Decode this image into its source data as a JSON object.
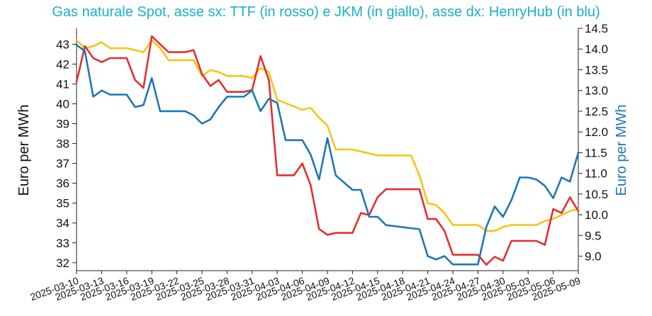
{
  "chart_data": {
    "type": "line",
    "title": "Gas naturale Spot, asse sx: TTF (in rosso) e JKM (in giallo), asse dx: HenryHub (in blu)",
    "ylabel": "Euro per MWh",
    "y2label": "Euro per MWh",
    "ylim": [
      31.6,
      43.8
    ],
    "y2lim": [
      8.65,
      14.5
    ],
    "yticks": [
      "32",
      "33",
      "34",
      "35",
      "36",
      "37",
      "38",
      "39",
      "40",
      "41",
      "42",
      "43"
    ],
    "y2ticks": [
      "9.0",
      "9.5",
      "10.0",
      "10.5",
      "11.0",
      "11.5",
      "12.0",
      "12.5",
      "13.0",
      "13.5",
      "14.0",
      "14.5"
    ],
    "xlim": [
      "2025-03-10",
      "2025-05-09"
    ],
    "xticks": [
      "2025-03-10",
      "2025-03-13",
      "2025-03-16",
      "2025-03-19",
      "2025-03-22",
      "2025-03-25",
      "2025-03-28",
      "2025-03-31",
      "2025-04-03",
      "2025-04-06",
      "2025-04-09",
      "2025-04-12",
      "2025-04-15",
      "2025-04-18",
      "2025-04-21",
      "2025-04-24",
      "2025-04-27",
      "2025-04-30",
      "2025-05-03",
      "2025-05-06",
      "2025-05-09"
    ],
    "grid": false,
    "colors": {
      "ttf": "#e03030",
      "jkm": "#f5c518",
      "henryhub": "#1f77b4",
      "title": "#1ab0c8",
      "y2label": "#1f77b4"
    },
    "series": [
      {
        "name": "TTF",
        "axis": "left",
        "x": [
          "2025-03-10",
          "2025-03-11",
          "2025-03-12",
          "2025-03-13",
          "2025-03-14",
          "2025-03-16",
          "2025-03-17",
          "2025-03-18",
          "2025-03-19",
          "2025-03-20",
          "2025-03-21",
          "2025-03-23",
          "2025-03-24",
          "2025-03-25",
          "2025-03-26",
          "2025-03-27",
          "2025-03-28",
          "2025-03-30",
          "2025-03-31",
          "2025-04-01",
          "2025-04-02",
          "2025-04-03",
          "2025-04-05",
          "2025-04-06",
          "2025-04-07",
          "2025-04-08",
          "2025-04-09",
          "2025-04-10",
          "2025-04-12",
          "2025-04-13",
          "2025-04-14",
          "2025-04-15",
          "2025-04-16",
          "2025-04-20",
          "2025-04-21",
          "2025-04-22",
          "2025-04-23",
          "2025-04-24",
          "2025-04-27",
          "2025-04-28",
          "2025-04-29",
          "2025-04-30",
          "2025-05-01",
          "2025-05-04",
          "2025-05-05",
          "2025-05-06",
          "2025-05-07",
          "2025-05-08",
          "2025-05-09"
        ],
        "values": [
          41.1,
          42.9,
          42.3,
          42.1,
          42.3,
          42.3,
          41.2,
          40.8,
          43.4,
          43.0,
          42.6,
          42.6,
          42.7,
          41.5,
          40.9,
          41.2,
          40.6,
          40.6,
          40.7,
          42.4,
          41.2,
          36.4,
          36.4,
          37.0,
          35.9,
          33.7,
          33.4,
          33.5,
          33.5,
          34.5,
          34.4,
          35.3,
          35.7,
          35.7,
          34.2,
          34.2,
          33.6,
          32.4,
          32.4,
          31.9,
          32.3,
          32.1,
          33.1,
          33.1,
          32.9,
          34.7,
          34.5,
          35.3,
          34.6
        ]
      },
      {
        "name": "JKM",
        "axis": "left",
        "x": [
          "2025-03-10",
          "2025-03-11",
          "2025-03-12",
          "2025-03-13",
          "2025-03-14",
          "2025-03-16",
          "2025-03-17",
          "2025-03-18",
          "2025-03-19",
          "2025-03-20",
          "2025-03-21",
          "2025-03-24",
          "2025-03-25",
          "2025-03-26",
          "2025-03-27",
          "2025-03-28",
          "2025-03-30",
          "2025-03-31",
          "2025-04-01",
          "2025-04-02",
          "2025-04-03",
          "2025-04-06",
          "2025-04-07",
          "2025-04-08",
          "2025-04-09",
          "2025-04-10",
          "2025-04-12",
          "2025-04-13",
          "2025-04-14",
          "2025-04-15",
          "2025-04-18",
          "2025-04-19",
          "2025-04-20",
          "2025-04-21",
          "2025-04-22",
          "2025-04-23",
          "2025-04-24",
          "2025-04-27",
          "2025-04-28",
          "2025-04-29",
          "2025-04-30",
          "2025-05-01",
          "2025-05-04",
          "2025-05-05",
          "2025-05-06",
          "2025-05-07",
          "2025-05-08",
          "2025-05-09"
        ],
        "values": [
          43.2,
          42.8,
          42.9,
          43.1,
          42.8,
          42.8,
          42.7,
          42.6,
          43.2,
          42.8,
          42.2,
          42.2,
          41.4,
          41.7,
          41.6,
          41.4,
          41.4,
          41.3,
          41.8,
          41.6,
          40.2,
          39.7,
          39.8,
          39.3,
          38.9,
          37.7,
          37.7,
          37.6,
          37.5,
          37.4,
          37.4,
          37.4,
          36.4,
          35.0,
          34.9,
          34.5,
          33.9,
          33.9,
          33.6,
          33.6,
          33.8,
          33.9,
          33.9,
          34.1,
          34.2,
          34.4,
          34.6,
          34.7
        ]
      },
      {
        "name": "HenryHub",
        "axis": "right",
        "x": [
          "2025-03-10",
          "2025-03-11",
          "2025-03-12",
          "2025-03-13",
          "2025-03-14",
          "2025-03-16",
          "2025-03-17",
          "2025-03-18",
          "2025-03-19",
          "2025-03-20",
          "2025-03-23",
          "2025-03-24",
          "2025-03-25",
          "2025-03-26",
          "2025-03-27",
          "2025-03-28",
          "2025-03-30",
          "2025-03-31",
          "2025-04-01",
          "2025-04-02",
          "2025-04-03",
          "2025-04-04",
          "2025-04-05",
          "2025-04-06",
          "2025-04-07",
          "2025-04-08",
          "2025-04-09",
          "2025-04-10",
          "2025-04-12",
          "2025-04-13",
          "2025-04-14",
          "2025-04-15",
          "2025-04-16",
          "2025-04-20",
          "2025-04-21",
          "2025-04-22",
          "2025-04-23",
          "2025-04-24",
          "2025-04-26",
          "2025-04-27",
          "2025-04-28",
          "2025-04-29",
          "2025-04-30",
          "2025-05-01",
          "2025-05-02",
          "2025-05-03",
          "2025-05-04",
          "2025-05-05",
          "2025-05-06",
          "2025-05-07",
          "2025-05-08",
          "2025-05-09"
        ],
        "values": [
          14.1,
          13.95,
          12.85,
          13.0,
          12.9,
          12.9,
          12.6,
          12.65,
          13.3,
          12.5,
          12.5,
          12.4,
          12.2,
          12.3,
          12.6,
          12.85,
          12.85,
          13.0,
          12.5,
          12.8,
          12.7,
          11.8,
          11.8,
          11.8,
          11.45,
          10.85,
          11.85,
          10.95,
          10.6,
          10.6,
          9.95,
          9.95,
          9.75,
          9.65,
          9.0,
          8.92,
          9.0,
          8.8,
          8.8,
          8.8,
          9.7,
          10.2,
          9.95,
          10.35,
          10.9,
          10.9,
          10.85,
          10.7,
          10.4,
          10.9,
          10.8,
          11.5
        ]
      }
    ]
  }
}
